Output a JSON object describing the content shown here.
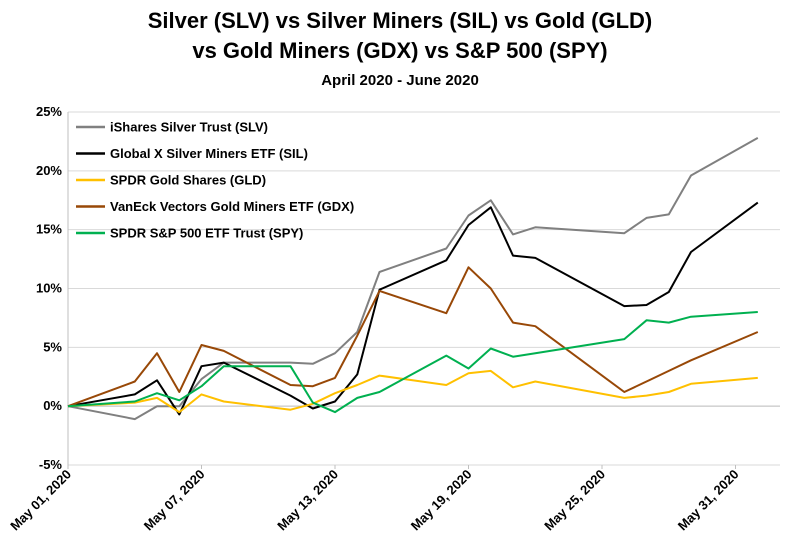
{
  "chart_data": {
    "type": "line",
    "title_line1": "Silver (SLV) vs Silver Miners (SIL) vs Gold (GLD)",
    "title_line2": "vs Gold Miners (GDX) vs S&P 500 (SPY)",
    "subtitle": "April 2020 - June 2020",
    "xlabel": "",
    "ylabel": "",
    "ylim": [
      -5,
      25
    ],
    "y_ticks": [
      -5,
      0,
      5,
      10,
      15,
      20,
      25
    ],
    "y_tick_labels": [
      "-5%",
      "0%",
      "5%",
      "10%",
      "15%",
      "20%",
      "25%"
    ],
    "x_range": [
      "2020-05-01",
      "2020-06-02"
    ],
    "x_tick_labels": [
      "May 01, 2020",
      "May 07, 2020",
      "May 13, 2020",
      "May 19, 2020",
      "May 25, 2020",
      "May 31, 2020"
    ],
    "x_ticks": [
      "2020-05-01",
      "2020-05-07",
      "2020-05-13",
      "2020-05-19",
      "2020-05-25",
      "2020-05-31"
    ],
    "grid": true,
    "legend_position": "top-left",
    "series": [
      {
        "name": "iShares Silver Trust (SLV)",
        "color": "#808080",
        "x": [
          "2020-05-01",
          "2020-05-04",
          "2020-05-05",
          "2020-05-06",
          "2020-05-07",
          "2020-05-08",
          "2020-05-11",
          "2020-05-12",
          "2020-05-13",
          "2020-05-14",
          "2020-05-15",
          "2020-05-18",
          "2020-05-19",
          "2020-05-20",
          "2020-05-21",
          "2020-05-22",
          "2020-05-26",
          "2020-05-27",
          "2020-05-28",
          "2020-05-29",
          "2020-06-01"
        ],
        "values": [
          0,
          -1.1,
          0,
          0,
          2.3,
          3.7,
          3.7,
          3.6,
          4.5,
          6.3,
          11.4,
          13.4,
          16.2,
          17.5,
          14.6,
          15.2,
          14.7,
          16.0,
          16.3,
          19.6,
          22.8
        ]
      },
      {
        "name": "Global X Silver Miners ETF (SIL)",
        "color": "#000000",
        "x": [
          "2020-05-01",
          "2020-05-04",
          "2020-05-05",
          "2020-05-06",
          "2020-05-07",
          "2020-05-08",
          "2020-05-11",
          "2020-05-12",
          "2020-05-13",
          "2020-05-14",
          "2020-05-15",
          "2020-05-18",
          "2020-05-19",
          "2020-05-20",
          "2020-05-21",
          "2020-05-22",
          "2020-05-26",
          "2020-05-27",
          "2020-05-28",
          "2020-05-29",
          "2020-06-01"
        ],
        "values": [
          0,
          1.0,
          2.2,
          -0.7,
          3.4,
          3.7,
          0.9,
          -0.2,
          0.4,
          2.7,
          9.9,
          12.4,
          15.4,
          16.9,
          12.8,
          12.6,
          8.5,
          8.6,
          9.7,
          13.1,
          17.3
        ]
      },
      {
        "name": "SPDR Gold Shares (GLD)",
        "color": "#ffc000",
        "x": [
          "2020-05-01",
          "2020-05-04",
          "2020-05-05",
          "2020-05-06",
          "2020-05-07",
          "2020-05-08",
          "2020-05-11",
          "2020-05-12",
          "2020-05-13",
          "2020-05-14",
          "2020-05-15",
          "2020-05-18",
          "2020-05-19",
          "2020-05-20",
          "2020-05-21",
          "2020-05-22",
          "2020-05-26",
          "2020-05-27",
          "2020-05-28",
          "2020-05-29",
          "2020-06-01"
        ],
        "values": [
          0,
          0.3,
          0.7,
          -0.5,
          1.0,
          0.4,
          -0.3,
          0.2,
          1.1,
          1.8,
          2.6,
          1.8,
          2.8,
          3.0,
          1.6,
          2.1,
          0.7,
          0.9,
          1.2,
          1.9,
          2.4
        ]
      },
      {
        "name": "VanEck Vectors Gold Miners ETF (GDX)",
        "color": "#984807",
        "x": [
          "2020-05-01",
          "2020-05-04",
          "2020-05-05",
          "2020-05-06",
          "2020-05-07",
          "2020-05-08",
          "2020-05-11",
          "2020-05-12",
          "2020-05-13",
          "2020-05-14",
          "2020-05-15",
          "2020-05-18",
          "2020-05-19",
          "2020-05-20",
          "2020-05-21",
          "2020-05-22",
          "2020-05-26",
          "2020-05-27",
          "2020-05-28",
          "2020-05-29",
          "2020-06-01"
        ],
        "values": [
          0,
          2.1,
          4.5,
          1.2,
          5.2,
          4.7,
          1.8,
          1.7,
          2.4,
          6.0,
          9.8,
          7.9,
          11.8,
          10.0,
          7.1,
          6.8,
          1.2,
          2.1,
          3.0,
          3.9,
          6.3
        ]
      },
      {
        "name": "SPDR S&P 500 ETF Trust (SPY)",
        "color": "#00b050",
        "x": [
          "2020-05-01",
          "2020-05-04",
          "2020-05-05",
          "2020-05-06",
          "2020-05-07",
          "2020-05-08",
          "2020-05-11",
          "2020-05-12",
          "2020-05-13",
          "2020-05-14",
          "2020-05-15",
          "2020-05-18",
          "2020-05-19",
          "2020-05-20",
          "2020-05-21",
          "2020-05-22",
          "2020-05-26",
          "2020-05-27",
          "2020-05-28",
          "2020-05-29",
          "2020-06-01"
        ],
        "values": [
          0,
          0.4,
          1.1,
          0.5,
          1.7,
          3.4,
          3.4,
          0.3,
          -0.5,
          0.7,
          1.2,
          4.3,
          3.2,
          4.9,
          4.2,
          4.5,
          5.7,
          7.3,
          7.1,
          7.6,
          8.0
        ]
      }
    ]
  }
}
